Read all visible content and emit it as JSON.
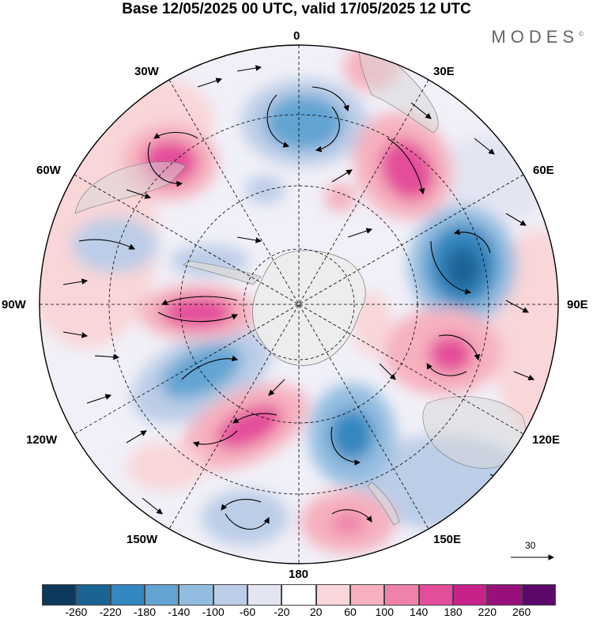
{
  "title": "Base 12/05/2025 00 UTC, valid 17/05/2025 12 UTC",
  "brand": "MODES",
  "brand_mark": "©",
  "longitude_labels": {
    "top": "0",
    "top_right": "30E",
    "right_upper": "60E",
    "right": "90E",
    "right_lower": "120E",
    "bottom_right": "150E",
    "bottom": "180",
    "bottom_left": "150W",
    "left_lower": "120W",
    "left": "90W",
    "left_upper": "60W",
    "top_left": "30W"
  },
  "vector_scale_label": "30",
  "map_type": "south polar stereographic, anomaly field with wind vectors",
  "legend": {
    "colors": [
      "#0d3a5c",
      "#1a6395",
      "#3487c0",
      "#62a4d2",
      "#93bde0",
      "#bccde7",
      "#e4e5f3",
      "#ffffff",
      "#f9d6d8",
      "#f6b1be",
      "#ef82aa",
      "#e44d9a",
      "#c8228a",
      "#98117b",
      "#5b0a6c"
    ],
    "ticks": [
      "-260",
      "-220",
      "-180",
      "-140",
      "-100",
      "-60",
      "-20",
      "20",
      "60",
      "100",
      "140",
      "180",
      "220",
      "260"
    ]
  },
  "colors": {
    "land": "#d8d8d8",
    "antarctica": "#ececec"
  }
}
